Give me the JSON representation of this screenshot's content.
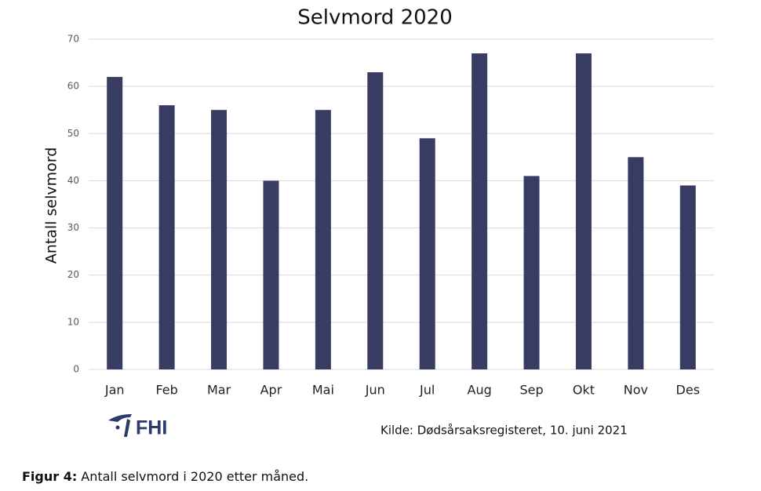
{
  "chart_data": {
    "type": "bar",
    "title": "Selvmord 2020",
    "y_label": "Antall selvmord",
    "categories": [
      "Jan",
      "Feb",
      "Mar",
      "Apr",
      "Mai",
      "Jun",
      "Jul",
      "Aug",
      "Sep",
      "Okt",
      "Nov",
      "Des"
    ],
    "values": [
      62,
      56,
      55,
      40,
      55,
      63,
      49,
      67,
      41,
      67,
      45,
      39
    ],
    "color": "#383c63",
    "ylim": [
      0,
      70
    ],
    "yticks": [
      0,
      10,
      20,
      30,
      40,
      50,
      60,
      70
    ],
    "grid": true
  },
  "logo": "FHI",
  "source": "Kilde: Dødsårsaksregisteret, 10. juni 2021",
  "caption": {
    "label": "Figur 4:",
    "text": "Antall selvmord i 2020 etter måned."
  }
}
